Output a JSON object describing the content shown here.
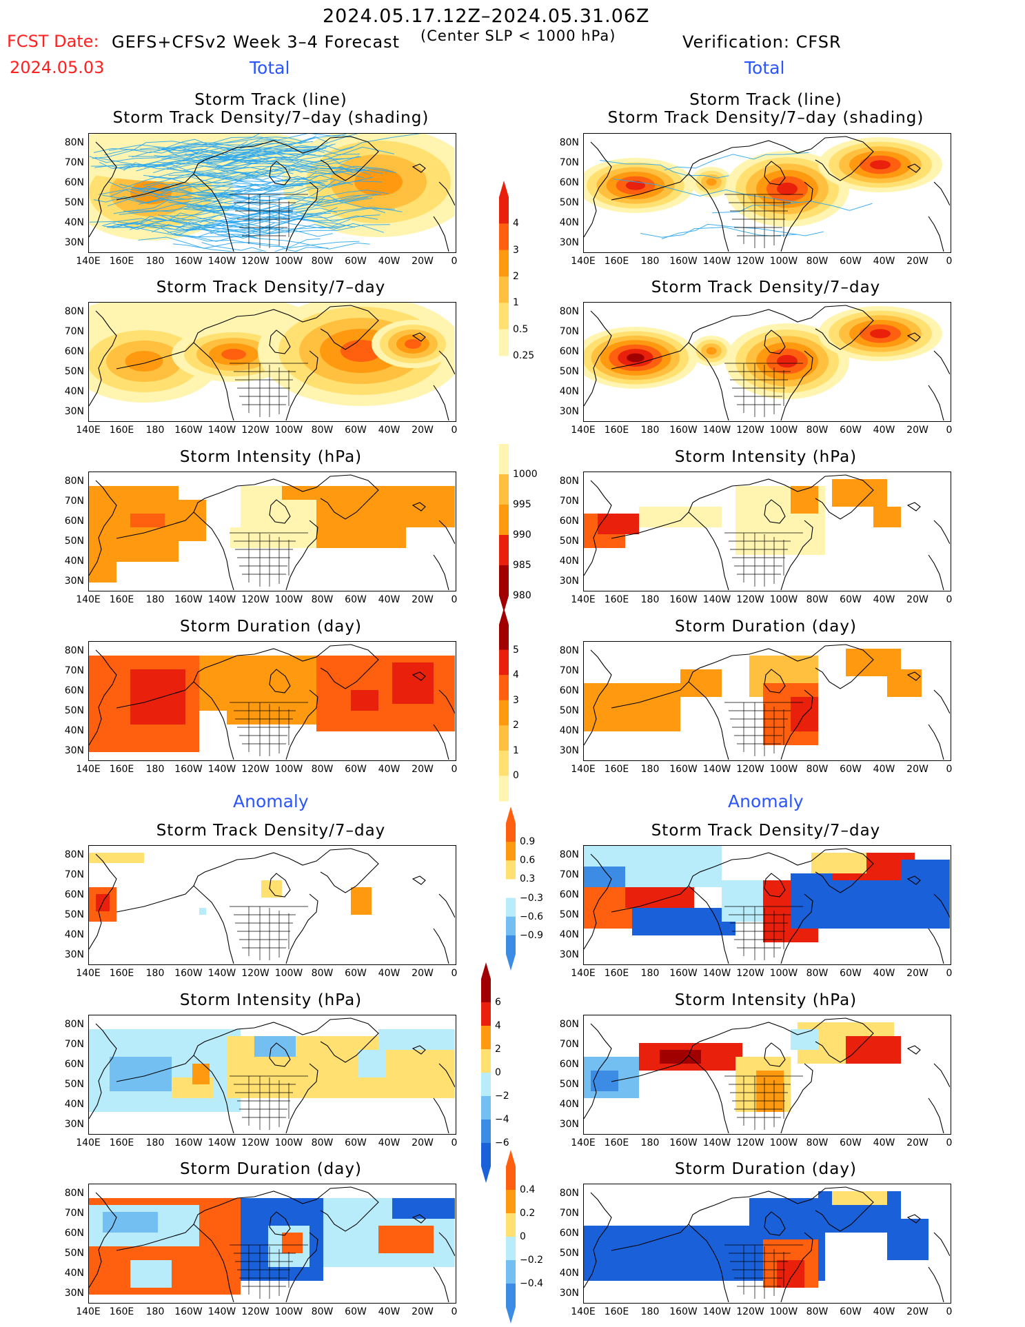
{
  "header": {
    "date_range": "2024.05.17.12Z–2024.05.31.06Z",
    "fcst_date_label": "FCST Date:",
    "fcst_date": "2024.05.03",
    "model": "GEFS+CFSv2 Week 3–4 Forecast",
    "criterion": "(Center SLP < 1000 hPa)",
    "verification": "Verification: CFSR"
  },
  "sections": {
    "total_left": "Total",
    "total_right": "Total",
    "anomaly_left": "Anomaly",
    "anomaly_right": "Anomaly"
  },
  "panel_titles": {
    "track_line": "Storm Track (line)",
    "track_density_shading": "Storm Track Density/7–day (shading)",
    "track_density": "Storm Track Density/7–day",
    "intensity": "Storm Intensity (hPa)",
    "duration": "Storm Duration (day)"
  },
  "axes": {
    "lat_ticks": [
      "80N",
      "70N",
      "60N",
      "50N",
      "40N",
      "30N"
    ],
    "lon_ticks": [
      "140E",
      "160E",
      "180",
      "160W",
      "140W",
      "120W",
      "100W",
      "80W",
      "60W",
      "40W",
      "20W",
      "0"
    ]
  },
  "colorbars": {
    "total_density": [
      "4",
      "3",
      "2",
      "1",
      "0.5",
      "0.25"
    ],
    "total_intensity": [
      "1000",
      "995",
      "990",
      "985",
      "980"
    ],
    "total_duration": [
      "5",
      "4",
      "3",
      "2",
      "1",
      "0"
    ],
    "anom_density": [
      "0.9",
      "0.6",
      "0.3",
      "−0.3",
      "−0.6",
      "−0.9"
    ],
    "anom_intensity": [
      "6",
      "4",
      "2",
      "0",
      "−2",
      "−4",
      "−6"
    ],
    "anom_duration": [
      "0.4",
      "0.2",
      "0",
      "−0.2",
      "−0.4"
    ]
  },
  "colors": {
    "light_yellow": "#fff5b0",
    "yellow": "#ffe070",
    "light_orange": "#ffc040",
    "orange": "#ff9a10",
    "dark_orange": "#ff6010",
    "red": "#e8200c",
    "dark_red": "#a00000",
    "light_blue": "#b8ecfa",
    "mid_blue": "#74bff2",
    "blue": "#3c8ce6",
    "dark_blue": "#1a60d8",
    "track_blue": "#2aa6ee"
  }
}
